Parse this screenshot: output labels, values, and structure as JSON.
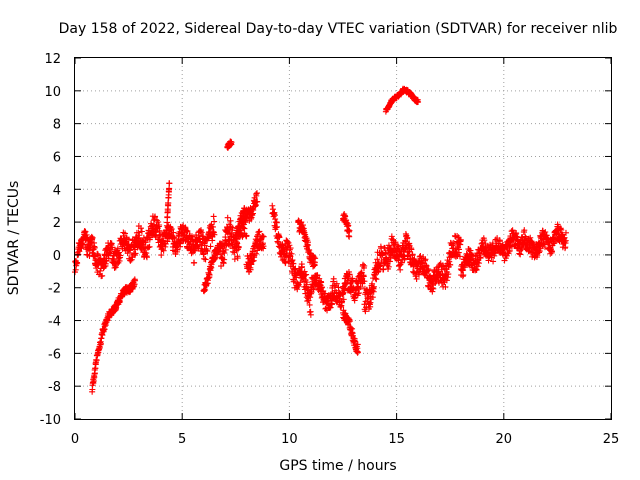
{
  "chart_data": {
    "type": "scatter",
    "title": "Day 158 of 2022, Sidereal Day-to-day VTEC variation (SDTVAR) for receiver nlib",
    "xlabel": "GPS time / hours",
    "ylabel": "SDTVAR / TECUs",
    "xlim": [
      0,
      25
    ],
    "ylim": [
      -10,
      12
    ],
    "xticks": [
      "0",
      "5",
      "10",
      "15",
      "20",
      "25"
    ],
    "yticks": [
      "-10",
      "-8",
      "-6",
      "-4",
      "-2",
      "0",
      "2",
      "4",
      "6",
      "8",
      "10",
      "12"
    ],
    "grid": true,
    "marker": "+",
    "color": "#ff0000",
    "segments": [
      {
        "from": [
          0.0,
          -0.8
        ],
        "to": [
          0.5,
          1.6
        ],
        "spread": 0.8
      },
      {
        "from": [
          0.5,
          1.2
        ],
        "to": [
          1.0,
          -0.5
        ],
        "spread": 1.2
      },
      {
        "from": [
          1.0,
          -0.5
        ],
        "to": [
          2.8,
          0.8
        ],
        "spread": 1.2
      },
      {
        "from": [
          0.8,
          -8.4
        ],
        "to": [
          1.0,
          -6.5
        ],
        "spread": 0.4
      },
      {
        "from": [
          1.0,
          -6.5
        ],
        "to": [
          1.3,
          -4.5
        ],
        "spread": 0.4
      },
      {
        "from": [
          1.3,
          -4.5
        ],
        "to": [
          2.0,
          -2.8
        ],
        "spread": 0.4
      },
      {
        "from": [
          2.0,
          -2.8
        ],
        "to": [
          2.8,
          -1.6
        ],
        "spread": 0.4
      },
      {
        "from": [
          2.8,
          0.5
        ],
        "to": [
          4.0,
          1.6
        ],
        "spread": 1.4
      },
      {
        "from": [
          4.0,
          1.0
        ],
        "to": [
          5.5,
          1.0
        ],
        "spread": 1.2
      },
      {
        "from": [
          4.3,
          2.0
        ],
        "to": [
          4.4,
          4.3
        ],
        "spread": 0.3
      },
      {
        "from": [
          5.5,
          0.3
        ],
        "to": [
          6.5,
          1.2
        ],
        "spread": 1.4
      },
      {
        "from": [
          6.0,
          -2.0
        ],
        "to": [
          6.8,
          0.8
        ],
        "spread": 0.6
      },
      {
        "from": [
          6.8,
          0.5
        ],
        "to": [
          8.0,
          1.5
        ],
        "spread": 1.8
      },
      {
        "from": [
          7.5,
          1.5
        ],
        "to": [
          8.5,
          3.3
        ],
        "spread": 0.8
      },
      {
        "from": [
          7.1,
          6.5
        ],
        "to": [
          7.3,
          6.8
        ],
        "spread": 0.3
      },
      {
        "from": [
          8.0,
          -0.5
        ],
        "to": [
          8.8,
          1.0
        ],
        "spread": 1.0
      },
      {
        "from": [
          9.2,
          2.2
        ],
        "to": [
          9.8,
          0.0
        ],
        "spread": 1.0
      },
      {
        "from": [
          9.8,
          0.0
        ],
        "to": [
          11.0,
          -2.5
        ],
        "spread": 1.4
      },
      {
        "from": [
          10.4,
          2.0
        ],
        "to": [
          11.2,
          -0.5
        ],
        "spread": 0.8
      },
      {
        "from": [
          11.0,
          -1.5
        ],
        "to": [
          12.0,
          -3.0
        ],
        "spread": 1.0
      },
      {
        "from": [
          12.0,
          -2.5
        ],
        "to": [
          13.5,
          -1.5
        ],
        "spread": 1.2
      },
      {
        "from": [
          12.5,
          2.5
        ],
        "to": [
          12.8,
          1.0
        ],
        "spread": 0.6
      },
      {
        "from": [
          12.5,
          -3.5
        ],
        "to": [
          13.2,
          -5.6
        ],
        "spread": 0.6
      },
      {
        "from": [
          13.5,
          -3.2
        ],
        "to": [
          14.5,
          0.5
        ],
        "spread": 1.4
      },
      {
        "from": [
          14.5,
          0.0
        ],
        "to": [
          15.5,
          0.4
        ],
        "spread": 1.4
      },
      {
        "from": [
          14.5,
          8.9
        ],
        "to": [
          15.3,
          10.1
        ],
        "spread": 0.2
      },
      {
        "from": [
          15.3,
          10.1
        ],
        "to": [
          16.0,
          9.4
        ],
        "spread": 0.2
      },
      {
        "from": [
          15.5,
          0.0
        ],
        "to": [
          17.0,
          -1.8
        ],
        "spread": 1.2
      },
      {
        "from": [
          17.0,
          -1.5
        ],
        "to": [
          18.0,
          1.0
        ],
        "spread": 1.4
      },
      {
        "from": [
          18.0,
          -0.8
        ],
        "to": [
          19.5,
          0.6
        ],
        "spread": 1.0
      },
      {
        "from": [
          19.5,
          0.2
        ],
        "to": [
          21.0,
          1.0
        ],
        "spread": 1.0
      },
      {
        "from": [
          21.0,
          0.3
        ],
        "to": [
          22.9,
          1.2
        ],
        "spread": 1.0
      }
    ]
  }
}
